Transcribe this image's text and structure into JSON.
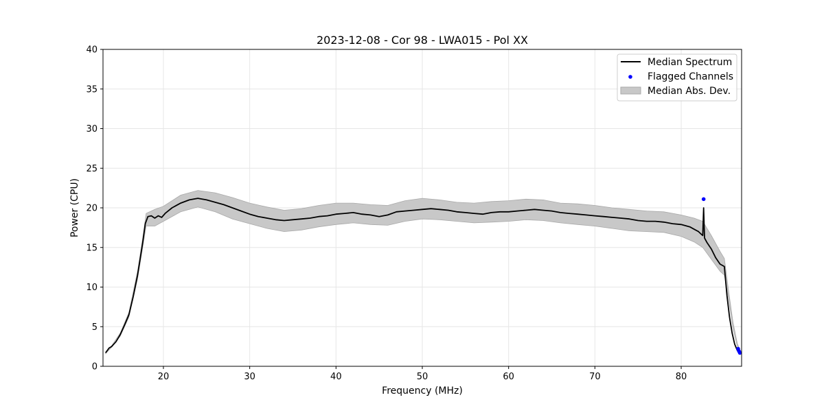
{
  "chart_data": {
    "type": "line",
    "title": "2023-12-08 - Cor 98 - LWA015 - Pol XX",
    "xlabel": "Frequency (MHz)",
    "ylabel": "Power (CPU)",
    "xlim": [
      13.0,
      87.0
    ],
    "ylim": [
      0,
      40
    ],
    "xticks": [
      20,
      30,
      40,
      50,
      60,
      70,
      80
    ],
    "yticks": [
      0,
      5,
      10,
      15,
      20,
      25,
      30,
      35,
      40
    ],
    "grid": true,
    "legend_position": "top-right",
    "legend": [
      {
        "label": "Median Spectrum",
        "kind": "line",
        "color": "#000000"
      },
      {
        "label": "Flagged Channels",
        "kind": "marker",
        "color": "#0000ff"
      },
      {
        "label": "Median Abs. Dev.",
        "kind": "patch",
        "color": "#c8c8c8"
      }
    ],
    "series": [
      {
        "name": "Median Spectrum",
        "color": "#000000",
        "x": [
          13.3,
          13.7,
          14.0,
          14.5,
          15.0,
          15.5,
          16.0,
          16.5,
          17.0,
          17.3,
          17.6,
          17.9,
          18.2,
          18.6,
          19.0,
          19.4,
          19.8,
          20.2,
          21.0,
          22.0,
          23.0,
          24.0,
          25.0,
          26.0,
          27.0,
          28.0,
          29.0,
          30.0,
          31.0,
          32.0,
          33.0,
          34.0,
          35.0,
          36.0,
          37.0,
          38.0,
          39.0,
          40.0,
          41.0,
          42.0,
          43.0,
          44.0,
          45.0,
          46.0,
          47.0,
          48.0,
          49.0,
          50.0,
          51.0,
          52.0,
          53.0,
          54.0,
          55.0,
          56.0,
          57.0,
          58.0,
          59.0,
          60.0,
          61.0,
          62.0,
          63.0,
          64.0,
          65.0,
          66.0,
          67.0,
          68.0,
          69.0,
          70.0,
          71.0,
          72.0,
          73.0,
          74.0,
          75.0,
          76.0,
          77.0,
          78.0,
          79.0,
          80.0,
          81.0,
          81.5,
          82.0,
          82.3,
          82.5,
          82.6,
          82.7,
          82.8,
          83.0,
          83.5,
          84.0,
          84.5,
          85.0,
          85.3,
          85.6,
          85.9,
          86.2,
          86.5,
          86.8
        ],
        "y": [
          1.7,
          2.3,
          2.5,
          3.1,
          4.0,
          5.2,
          6.5,
          8.8,
          11.5,
          13.5,
          15.6,
          18.0,
          18.9,
          19.0,
          18.7,
          19.0,
          18.8,
          19.3,
          20.0,
          20.6,
          21.0,
          21.2,
          21.0,
          20.7,
          20.4,
          20.0,
          19.6,
          19.2,
          18.9,
          18.7,
          18.5,
          18.4,
          18.5,
          18.6,
          18.7,
          18.9,
          19.0,
          19.2,
          19.3,
          19.4,
          19.2,
          19.1,
          18.9,
          19.1,
          19.5,
          19.6,
          19.7,
          19.8,
          19.9,
          19.8,
          19.7,
          19.5,
          19.4,
          19.3,
          19.2,
          19.4,
          19.5,
          19.5,
          19.6,
          19.7,
          19.8,
          19.7,
          19.6,
          19.4,
          19.3,
          19.2,
          19.1,
          19.0,
          18.9,
          18.8,
          18.7,
          18.6,
          18.4,
          18.3,
          18.3,
          18.2,
          18.0,
          17.9,
          17.6,
          17.3,
          17.0,
          16.7,
          16.5,
          20.0,
          16.2,
          16.0,
          15.6,
          14.8,
          13.7,
          12.9,
          12.6,
          9.0,
          6.2,
          4.2,
          2.8,
          2.0,
          1.8
        ]
      },
      {
        "name": "Median Abs. Dev.",
        "type": "band",
        "color": "#c8c8c8",
        "x": [
          13.3,
          14.0,
          15.0,
          16.0,
          17.0,
          17.6,
          18.0,
          19.0,
          20.0,
          22.0,
          24.0,
          26.0,
          28.0,
          30.0,
          32.0,
          34.0,
          36.0,
          38.0,
          40.0,
          42.0,
          44.0,
          46.0,
          48.0,
          50.0,
          52.0,
          54.0,
          56.0,
          58.0,
          60.0,
          62.0,
          64.0,
          66.0,
          68.0,
          70.0,
          72.0,
          74.0,
          76.0,
          78.0,
          80.0,
          81.5,
          82.5,
          83.5,
          84.5,
          85.0,
          85.5,
          86.0,
          86.5,
          86.8
        ],
        "lower": [
          1.6,
          2.4,
          3.8,
          6.2,
          11.0,
          15.0,
          17.7,
          17.7,
          18.3,
          19.5,
          20.1,
          19.5,
          18.6,
          18.0,
          17.4,
          17.0,
          17.2,
          17.6,
          17.9,
          18.1,
          17.9,
          17.8,
          18.3,
          18.6,
          18.5,
          18.3,
          18.1,
          18.2,
          18.3,
          18.5,
          18.4,
          18.1,
          17.9,
          17.7,
          17.4,
          17.1,
          17.0,
          16.9,
          16.4,
          15.7,
          15.0,
          13.5,
          12.0,
          11.5,
          8.5,
          4.8,
          2.5,
          1.8
        ],
        "upper": [
          1.8,
          2.6,
          4.2,
          6.8,
          12.0,
          16.2,
          19.3,
          19.8,
          20.2,
          21.6,
          22.2,
          21.9,
          21.3,
          20.6,
          20.1,
          19.7,
          19.9,
          20.3,
          20.6,
          20.6,
          20.4,
          20.3,
          20.9,
          21.2,
          21.0,
          20.7,
          20.6,
          20.8,
          20.9,
          21.1,
          21.0,
          20.6,
          20.5,
          20.3,
          20.0,
          19.8,
          19.6,
          19.5,
          19.1,
          18.7,
          18.3,
          16.5,
          14.5,
          13.6,
          9.5,
          5.6,
          2.9,
          2.1
        ]
      },
      {
        "name": "Flagged Channels",
        "type": "scatter",
        "color": "#0000ff",
        "x": [
          82.6,
          86.6,
          86.7,
          86.8
        ],
        "y": [
          21.1,
          2.2,
          1.9,
          1.7
        ]
      }
    ]
  }
}
